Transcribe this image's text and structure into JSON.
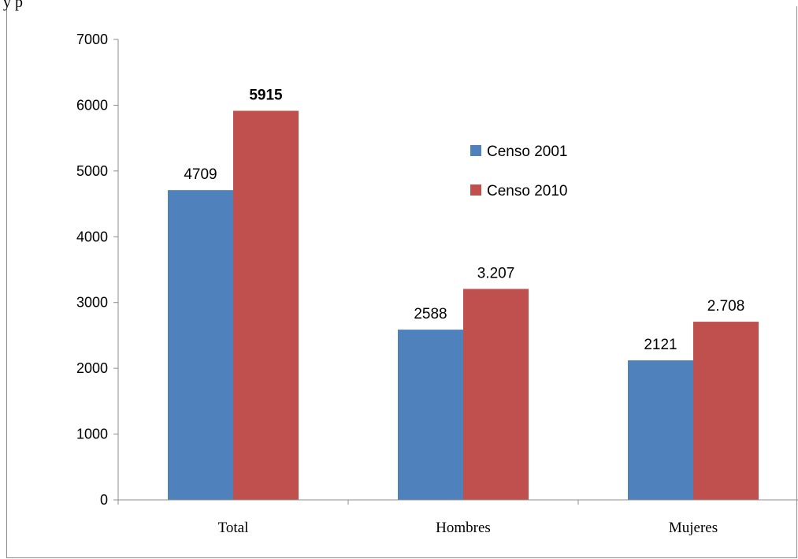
{
  "top_text": "y p",
  "colors": {
    "series_2001": "#4f81bd",
    "series_2010": "#c0504d",
    "axis": "#8c8c8c"
  },
  "chart_data": {
    "type": "bar",
    "categories": [
      "Total",
      "Hombres",
      "Mujeres"
    ],
    "series": [
      {
        "name": "Censo 2001",
        "values": [
          4709,
          2588,
          2121
        ],
        "labels": [
          "4709",
          "2588",
          "2121"
        ]
      },
      {
        "name": "Censo 2010",
        "values": [
          5915,
          3207,
          2708
        ],
        "labels": [
          "5915",
          "3.207",
          "2.708"
        ]
      }
    ],
    "ylim": [
      0,
      7000
    ],
    "yticks": [
      "0",
      "1000",
      "2000",
      "3000",
      "4000",
      "5000",
      "6000",
      "7000"
    ],
    "grid": false,
    "legend_position": "right"
  }
}
